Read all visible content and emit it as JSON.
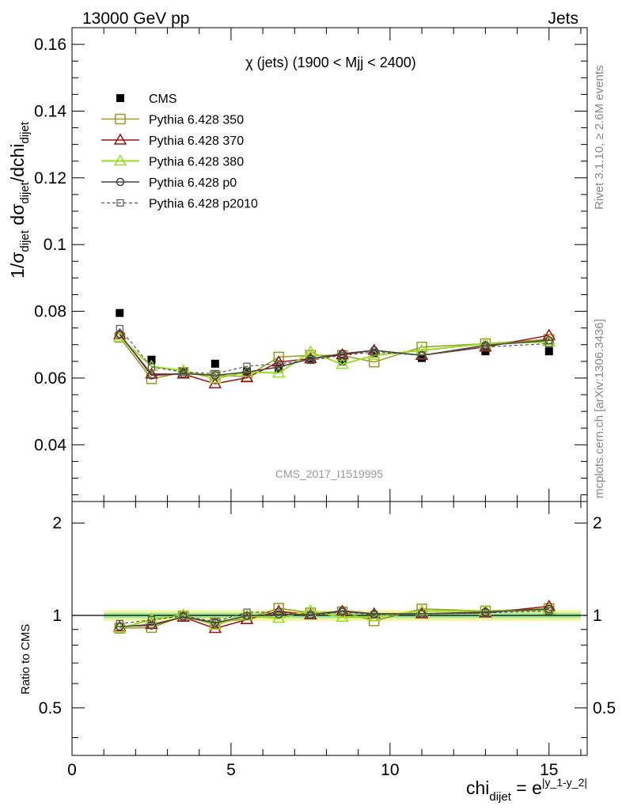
{
  "header": {
    "left": "13000 GeV pp",
    "right": "Jets"
  },
  "side": {
    "rivet": "Rivet 3.1.10, ≥ 2.6M events",
    "mcplots": "mcplots.cern.ch [arXiv:1306.3436]"
  },
  "chart_data": {
    "type": "line",
    "title": "χ (jets) (1900 < Mjj < 2400)",
    "watermark": "CMS_2017_I1519995",
    "ylabel_main": "1/σdijet dσdijet/dchidijet",
    "ylabel_ratio": "Ratio to CMS",
    "xlabel": "chidijet = e|y_1-y_2|",
    "xlim": [
      0,
      16.2
    ],
    "ylim_main": [
      0.023,
      0.165
    ],
    "ylim_ratio": [
      0.35,
      2.35
    ],
    "x_ticks": [
      "0",
      "5",
      "10",
      "15"
    ],
    "y_ticks_main": [
      "0.04",
      "0.06",
      "0.08",
      "0.1",
      "0.12",
      "0.14",
      "0.16"
    ],
    "y_ticks_ratio": [
      "0.5",
      "1",
      "2"
    ],
    "x": [
      1.5,
      2.5,
      3.5,
      4.5,
      5.5,
      6.5,
      7.5,
      8.5,
      9.5,
      11,
      13,
      15
    ],
    "series": [
      {
        "name": "CMS",
        "color": "#000000",
        "values": [
          0.0795,
          0.0655,
          0.062,
          0.0643,
          0.062,
          0.0628,
          0.0655,
          0.065,
          0.0675,
          0.066,
          0.068,
          0.068
        ]
      },
      {
        "name": "Pythia 6.428 350",
        "color": "#999922",
        "values": [
          0.0722,
          0.0598,
          0.0617,
          0.0608,
          0.0605,
          0.0663,
          0.0668,
          0.0668,
          0.0648,
          0.0693,
          0.0703,
          0.0716
        ]
      },
      {
        "name": "Pythia 6.428 370",
        "color": "#a01010",
        "values": [
          0.073,
          0.0612,
          0.0612,
          0.0583,
          0.0601,
          0.0648,
          0.0658,
          0.067,
          0.0683,
          0.0668,
          0.0693,
          0.0728
        ]
      },
      {
        "name": "Pythia 6.428 380",
        "color": "#99dd22",
        "values": [
          0.0722,
          0.0635,
          0.0622,
          0.0598,
          0.0618,
          0.0615,
          0.0678,
          0.0641,
          0.0668,
          0.0683,
          0.0703,
          0.0708
        ]
      },
      {
        "name": "Pythia 6.428 p0",
        "color": "#444444",
        "values": [
          0.0732,
          0.0608,
          0.0613,
          0.0608,
          0.0618,
          0.0633,
          0.0658,
          0.0673,
          0.0683,
          0.0668,
          0.0698,
          0.0713
        ]
      },
      {
        "name": "Pythia 6.428 p2010",
        "color": "#555555",
        "values": [
          0.0748,
          0.0633,
          0.0618,
          0.0613,
          0.0635,
          0.0643,
          0.0653,
          0.0668,
          0.0678,
          0.0668,
          0.0693,
          0.0703
        ]
      }
    ],
    "legend_placement": "top-left"
  }
}
